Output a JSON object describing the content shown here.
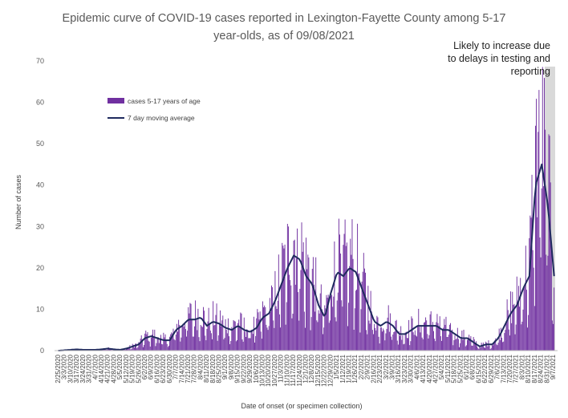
{
  "chart_data": {
    "type": "bar",
    "title_lines": [
      "Epidemic curve of COVID-19 cases reported in Lexington-Fayette County among 5-17",
      "year-olds, as of 09/08/2021"
    ],
    "xlabel": "Date of onset (or specimen collection)",
    "ylabel": "Number of cases",
    "ylim": [
      0,
      70
    ],
    "yticks": [
      0,
      10,
      20,
      30,
      40,
      50,
      60,
      70
    ],
    "grid": false,
    "legend_position": "top-left",
    "colors": {
      "bars": "#7030a0",
      "line": "#1f2a5e",
      "shade": "#d9d9d9"
    },
    "series": [
      {
        "name": "cases 5-17 years of age",
        "kind": "bar"
      },
      {
        "name": "7 day moving average",
        "kind": "line"
      }
    ],
    "shaded_region": {
      "from": "8/28/2021",
      "to": "9/7/2021"
    },
    "annotation": [
      "Likely to increase due",
      "to delays in testing and",
      "reporting"
    ],
    "xtick_labels": [
      "2/25/2020",
      "3/3/2020",
      "3/10/2020",
      "3/17/2020",
      "3/24/2020",
      "3/31/2020",
      "4/7/2020",
      "4/14/2020",
      "4/21/2020",
      "4/28/2020",
      "5/5/2020",
      "5/12/2020",
      "5/19/2020",
      "5/26/2020",
      "6/2/2020",
      "6/9/2020",
      "6/16/2020",
      "6/23/2020",
      "6/30/2020",
      "7/7/2020",
      "7/14/2020",
      "7/21/2020",
      "7/28/2020",
      "8/4/2020",
      "8/11/2020",
      "8/18/2020",
      "8/25/2020",
      "9/1/2020",
      "9/8/2020",
      "9/15/2020",
      "9/22/2020",
      "9/29/2020",
      "10/6/2020",
      "10/13/2020",
      "10/20/2020",
      "10/27/2020",
      "11/3/2020",
      "11/10/2020",
      "11/17/2020",
      "11/24/2020",
      "12/1/2020",
      "12/8/2020",
      "12/15/2020",
      "12/22/2020",
      "12/29/2020",
      "1/5/2021",
      "1/12/2021",
      "1/19/2021",
      "1/26/2021",
      "2/2/2021",
      "2/9/2021",
      "2/16/2021",
      "2/23/2021",
      "3/2/2021",
      "3/9/2021",
      "3/16/2021",
      "3/23/2021",
      "3/30/2021",
      "4/6/2021",
      "4/13/2021",
      "4/20/2021",
      "4/27/2021",
      "5/4/2021",
      "5/11/2021",
      "5/18/2021",
      "5/25/2021",
      "6/1/2021",
      "6/8/2021",
      "6/15/2021",
      "6/22/2021",
      "6/29/2021",
      "7/6/2021",
      "7/13/2021",
      "7/20/2021",
      "7/27/2021",
      "8/3/2021",
      "8/10/2021",
      "8/17/2021",
      "8/24/2021",
      "8/31/2021",
      "9/7/2021"
    ],
    "weekly_avg_cases": [
      0,
      0.1,
      0.2,
      0.3,
      0.2,
      0.2,
      0.2,
      0.3,
      0.5,
      0.3,
      0.2,
      0.5,
      1,
      1.5,
      3,
      3.5,
      3,
      2.5,
      2.5,
      5,
      6,
      7.5,
      7.5,
      8,
      6,
      7,
      6.5,
      5.5,
      5,
      6,
      5,
      4.5,
      5.5,
      8,
      9,
      12,
      16,
      20,
      23,
      22,
      18,
      16,
      11,
      8,
      14,
      19,
      18,
      20,
      19,
      15,
      11,
      7,
      6,
      7,
      6,
      4,
      4,
      5,
      6,
      6,
      6,
      6,
      5,
      5,
      4,
      3,
      3,
      2,
      1,
      1.5,
      1.5,
      3,
      6,
      9,
      11,
      15,
      18,
      40,
      45,
      35,
      18
    ],
    "peak_day_cases": 63
  }
}
